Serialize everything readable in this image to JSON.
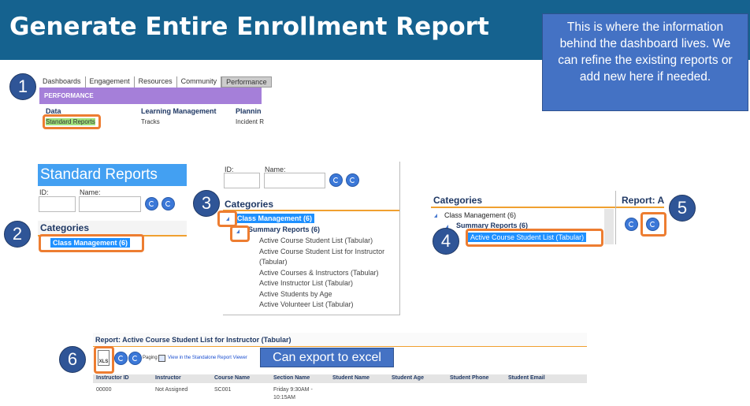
{
  "header": {
    "title": "Generate Entire Enrollment Report"
  },
  "callouts": {
    "info": "This is where the information behind the dashboard lives. We can refine the existing reports or add new here if needed.",
    "export": "Can export to excel"
  },
  "steps": [
    "1",
    "2",
    "3",
    "4",
    "5",
    "6"
  ],
  "panel1": {
    "tabs": [
      "Dashboards",
      "Engagement",
      "Resources",
      "Community",
      "Performance"
    ],
    "banner": "PERFORMANCE",
    "columns": [
      {
        "heading": "Data",
        "item": "Standard Reports"
      },
      {
        "heading": "Learning Management",
        "item": "Tracks"
      },
      {
        "heading": "Plannin",
        "item": "Incident R"
      }
    ]
  },
  "panel2": {
    "title": "Standard Reports",
    "id_label": "ID:",
    "name_label": "Name:",
    "categories": "Categories",
    "category": "Class Management (6)"
  },
  "panel3": {
    "id_label": "ID:",
    "name_label": "Name:",
    "categories": "Categories",
    "category": "Class Management (6)",
    "subcategory": "Summary Reports (6)",
    "reports": [
      "Active Course Student List (Tabular)",
      "Active Course Student List for Instructor (Tabular)",
      "Active Courses & Instructors (Tabular)",
      "Active Instructor List (Tabular)",
      "Active Students by Age",
      "Active Volunteer List (Tabular)"
    ]
  },
  "panel4": {
    "categories": "Categories",
    "category": "Class Management (6)",
    "subcategory": "Summary Reports (6)",
    "selected_report": "Active Course Student List (Tabular)",
    "report_heading": "Report: A"
  },
  "panel6": {
    "report_title": "Report: Active Course Student List for Instructor (Tabular)",
    "export_icon": "XLS",
    "paging": "Paging",
    "viewer_link": "View in the Standalone Report Viewer",
    "columns": [
      "Instructor ID",
      "Instructor",
      "Course Name",
      "Section Name",
      "Student Name",
      "Student Age",
      "Student Phone",
      "Student Email"
    ],
    "rows": [
      [
        "00000",
        "Not Assigned",
        "SC001",
        "Friday 9:30AM - 10:15AM"
      ]
    ]
  }
}
